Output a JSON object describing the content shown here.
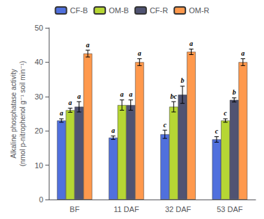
{
  "chart_data": {
    "type": "bar",
    "categories": [
      "BF",
      "11 DAF",
      "32 DAF",
      "53 DAF"
    ],
    "series": [
      {
        "name": "CF-B",
        "values": [
          23.0,
          18.0,
          19.0,
          17.5
        ],
        "errors": [
          0.5,
          0.5,
          1.2,
          0.8
        ],
        "letters": [
          "a",
          "a",
          "c",
          "c"
        ]
      },
      {
        "name": "OM-B",
        "values": [
          26.0,
          27.5,
          27.0,
          23.0
        ],
        "errors": [
          0.6,
          1.5,
          1.5,
          0.5
        ],
        "letters": [
          "a",
          "a",
          "bc",
          "c"
        ]
      },
      {
        "name": "CF-R",
        "values": [
          27.0,
          27.5,
          30.5,
          29.0
        ],
        "errors": [
          1.5,
          1.5,
          2.5,
          0.6
        ],
        "letters": [
          "a",
          "a",
          "b",
          "b"
        ]
      },
      {
        "name": "OM-R",
        "values": [
          42.5,
          40.0,
          43.0,
          40.0
        ],
        "errors": [
          1.0,
          1.0,
          0.8,
          1.0
        ],
        "letters": [
          "a",
          "a",
          "a",
          "a"
        ]
      }
    ],
    "ylabel": "Alkaline phosphatase activity\n(nmol p-nitrophenol g⁻¹ soil min⁻¹)",
    "ylim": [
      0,
      50
    ],
    "yticks": [
      0,
      10,
      20,
      30,
      40,
      50
    ],
    "grid": false,
    "legend": "top"
  }
}
